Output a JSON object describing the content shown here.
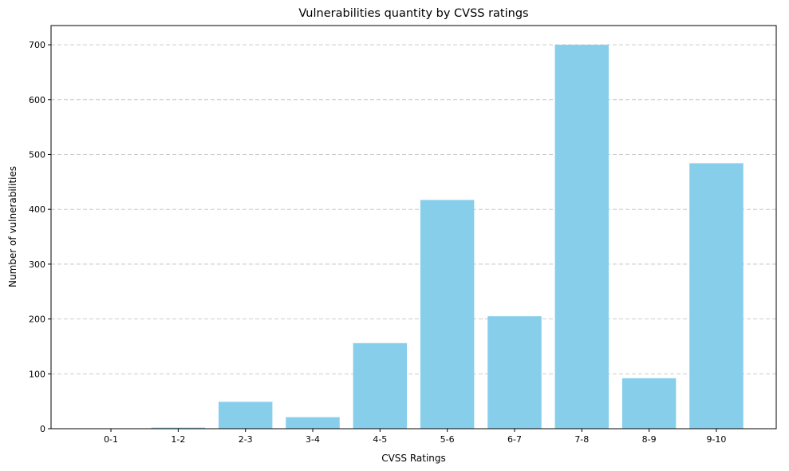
{
  "chart_data": {
    "type": "bar",
    "title": "Vulnerabilities quantity by CVSS ratings",
    "xlabel": "CVSS Ratings",
    "ylabel": "Number of vulnerabilities",
    "categories": [
      "0-1",
      "1-2",
      "2-3",
      "3-4",
      "4-5",
      "5-6",
      "6-7",
      "7-8",
      "8-9",
      "9-10"
    ],
    "values": [
      0,
      2,
      49,
      21,
      156,
      417,
      205,
      700,
      92,
      484
    ],
    "ylim": [
      0,
      735
    ],
    "yticks": [
      0,
      100,
      200,
      300,
      400,
      500,
      600,
      700
    ],
    "grid": "y-dashed",
    "bar_color": "#87ceeb"
  }
}
